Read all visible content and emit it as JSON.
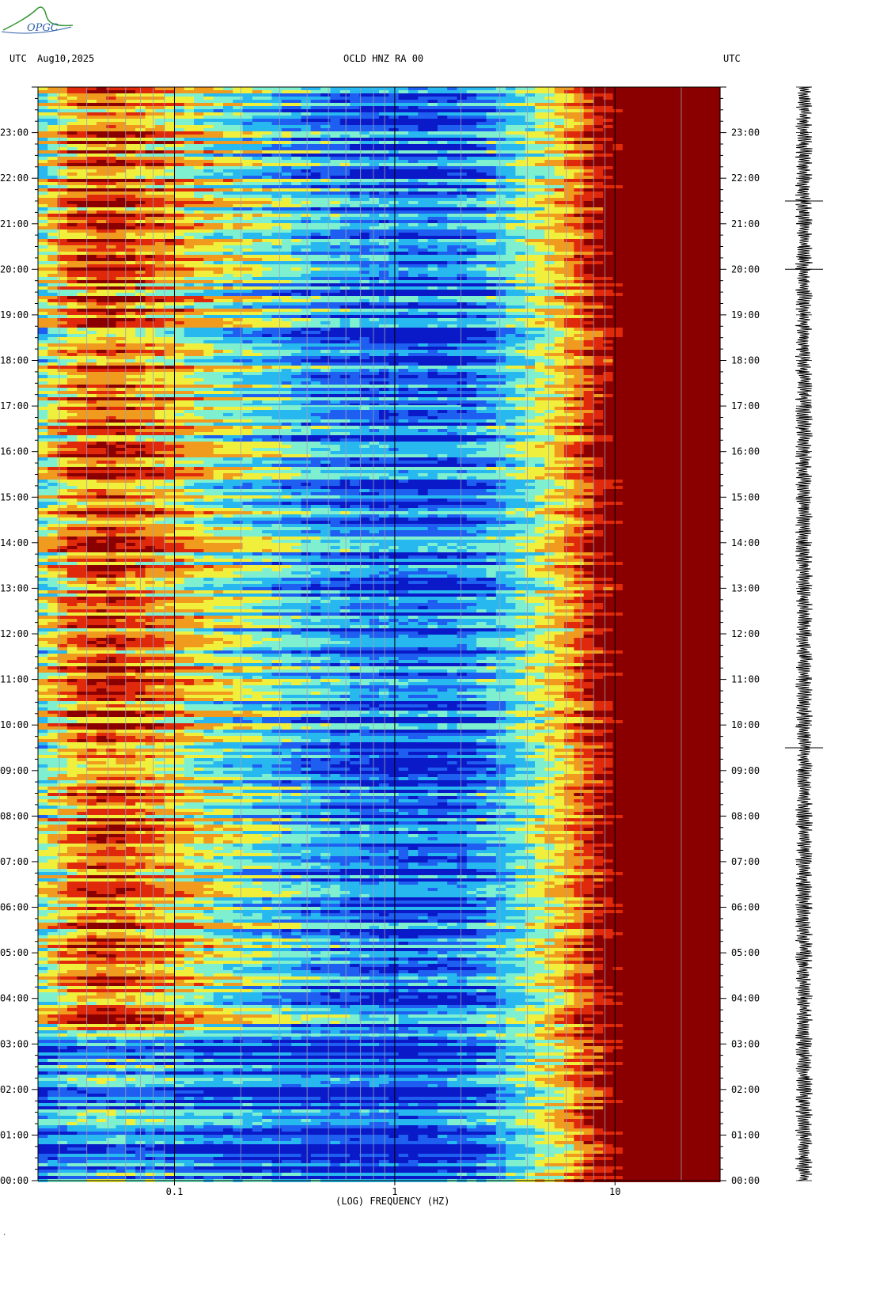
{
  "logo": {
    "text": "OPGC"
  },
  "header": {
    "left_tz": "UTC",
    "date": "Aug10,2025",
    "station": "OCLD HNZ RA 00",
    "right_tz": "UTC"
  },
  "chart_data": {
    "type": "heatmap",
    "title": "OCLD HNZ RA 00",
    "xlabel": "(LOG) FREQUENCY (HZ)",
    "ylabel": "",
    "x_scale": "log",
    "xlim": [
      0.024,
      30
    ],
    "x_ticks": [
      {
        "value": 0.1,
        "label": "0.1"
      },
      {
        "value": 1,
        "label": "1"
      },
      {
        "value": 10,
        "label": "10"
      }
    ],
    "ylim_hours": [
      0,
      24
    ],
    "y_ticks": [
      {
        "value": 0,
        "label": "00:00"
      },
      {
        "value": 1,
        "label": "01:00"
      },
      {
        "value": 2,
        "label": "02:00"
      },
      {
        "value": 3,
        "label": "03:00"
      },
      {
        "value": 4,
        "label": "04:00"
      },
      {
        "value": 5,
        "label": "05:00"
      },
      {
        "value": 6,
        "label": "06:00"
      },
      {
        "value": 7,
        "label": "07:00"
      },
      {
        "value": 8,
        "label": "08:00"
      },
      {
        "value": 9,
        "label": "09:00"
      },
      {
        "value": 10,
        "label": "10:00"
      },
      {
        "value": 11,
        "label": "11:00"
      },
      {
        "value": 12,
        "label": "12:00"
      },
      {
        "value": 13,
        "label": "13:00"
      },
      {
        "value": 14,
        "label": "14:00"
      },
      {
        "value": 15,
        "label": "15:00"
      },
      {
        "value": 16,
        "label": "16:00"
      },
      {
        "value": 17,
        "label": "17:00"
      },
      {
        "value": 18,
        "label": "18:00"
      },
      {
        "value": 19,
        "label": "19:00"
      },
      {
        "value": 20,
        "label": "20:00"
      },
      {
        "value": 21,
        "label": "21:00"
      },
      {
        "value": 22,
        "label": "22:00"
      },
      {
        "value": 23,
        "label": "23:00"
      }
    ],
    "colormap": [
      "#0a1ac8",
      "#1e5ef0",
      "#28b8f0",
      "#7ef0d0",
      "#f0f03c",
      "#f09a1e",
      "#e0280a",
      "#8a0000"
    ],
    "energy_profile": {
      "freq": [
        0.024,
        0.035,
        0.05,
        0.07,
        0.1,
        0.15,
        0.25,
        0.4,
        0.7,
        1.2,
        2,
        3,
        4,
        5,
        6,
        7,
        8,
        9,
        10,
        11,
        13,
        30
      ],
      "level": [
        0.45,
        0.7,
        0.78,
        0.7,
        0.62,
        0.5,
        0.4,
        0.3,
        0.22,
        0.18,
        0.2,
        0.32,
        0.45,
        0.55,
        0.65,
        0.75,
        0.85,
        0.92,
        0.97,
        1.0,
        1.0,
        1.0
      ]
    },
    "notable_events": [
      {
        "time_hours": 17.0,
        "freq_range": [
          0.2,
          2.0
        ],
        "note": ""
      },
      {
        "time_hours": 3.2,
        "freq_range": [
          0.1,
          1.5
        ],
        "note": ""
      }
    ],
    "grid": true
  }
}
